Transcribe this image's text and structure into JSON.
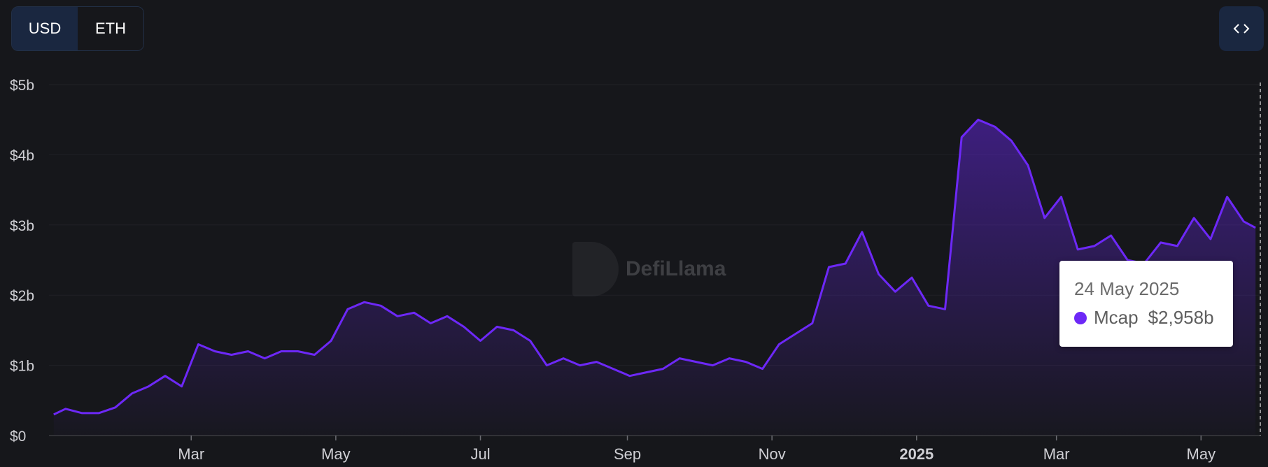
{
  "toggle": {
    "usd_label": "USD",
    "eth_label": "ETH",
    "active": "USD"
  },
  "embed_icon": "code-brackets-icon",
  "watermark": {
    "text": "DefiLlama",
    "icon": "llama-logo-icon"
  },
  "tooltip": {
    "date": "24 May 2025",
    "series": "Mcap",
    "value": "$2,958b"
  },
  "colors": {
    "background": "#16171b",
    "line": "#6d28f7",
    "accent": "#1a2740"
  },
  "chart_data": {
    "type": "area",
    "ylabel": "",
    "xlabel": "",
    "ylim": [
      0,
      5
    ],
    "yticks": [
      "$0",
      "$1b",
      "$2b",
      "$3b",
      "$4b",
      "$5b"
    ],
    "xlim": [
      "2024-01-01",
      "2025-05-26"
    ],
    "xticks": [
      {
        "date": "2024-03-01",
        "label": "Mar"
      },
      {
        "date": "2024-05-01",
        "label": "May"
      },
      {
        "date": "2024-07-01",
        "label": "Jul"
      },
      {
        "date": "2024-09-01",
        "label": "Sep"
      },
      {
        "date": "2024-11-01",
        "label": "Nov"
      },
      {
        "date": "2025-01-01",
        "label": "2025",
        "bold": true
      },
      {
        "date": "2025-03-01",
        "label": "Mar"
      },
      {
        "date": "2025-05-01",
        "label": "May"
      }
    ],
    "grid": true,
    "series": [
      {
        "name": "Mcap",
        "unit": "billion USD",
        "x": [
          "2024-01-03",
          "2024-01-08",
          "2024-01-15",
          "2024-01-22",
          "2024-01-29",
          "2024-02-05",
          "2024-02-12",
          "2024-02-19",
          "2024-02-26",
          "2024-03-04",
          "2024-03-11",
          "2024-03-18",
          "2024-03-25",
          "2024-04-01",
          "2024-04-08",
          "2024-04-15",
          "2024-04-22",
          "2024-04-29",
          "2024-05-06",
          "2024-05-13",
          "2024-05-20",
          "2024-05-27",
          "2024-06-03",
          "2024-06-10",
          "2024-06-17",
          "2024-06-24",
          "2024-07-01",
          "2024-07-08",
          "2024-07-15",
          "2024-07-22",
          "2024-07-29",
          "2024-08-05",
          "2024-08-12",
          "2024-08-19",
          "2024-08-26",
          "2024-09-02",
          "2024-09-09",
          "2024-09-16",
          "2024-09-23",
          "2024-09-30",
          "2024-10-07",
          "2024-10-14",
          "2024-10-21",
          "2024-10-28",
          "2024-11-04",
          "2024-11-11",
          "2024-11-18",
          "2024-11-25",
          "2024-12-02",
          "2024-12-09",
          "2024-12-16",
          "2024-12-23",
          "2024-12-30",
          "2025-01-06",
          "2025-01-13",
          "2025-01-20",
          "2025-01-27",
          "2025-02-03",
          "2025-02-10",
          "2025-02-17",
          "2025-02-24",
          "2025-03-03",
          "2025-03-10",
          "2025-03-17",
          "2025-03-24",
          "2025-03-31",
          "2025-04-07",
          "2025-04-14",
          "2025-04-21",
          "2025-04-28",
          "2025-05-05",
          "2025-05-12",
          "2025-05-19",
          "2025-05-24"
        ],
        "values": [
          0.3,
          0.38,
          0.32,
          0.32,
          0.4,
          0.6,
          0.7,
          0.85,
          0.7,
          1.3,
          1.2,
          1.15,
          1.2,
          1.1,
          1.2,
          1.2,
          1.15,
          1.35,
          1.8,
          1.9,
          1.85,
          1.7,
          1.75,
          1.6,
          1.7,
          1.55,
          1.35,
          1.55,
          1.5,
          1.35,
          1.0,
          1.1,
          1.0,
          1.05,
          0.95,
          0.85,
          0.9,
          0.95,
          1.1,
          1.05,
          1.0,
          1.1,
          1.05,
          0.95,
          1.3,
          1.45,
          1.6,
          2.4,
          2.45,
          2.9,
          2.3,
          2.05,
          2.25,
          1.85,
          1.8,
          4.25,
          4.5,
          4.4,
          4.2,
          3.85,
          3.1,
          3.4,
          2.65,
          2.7,
          2.85,
          2.5,
          2.45,
          2.75,
          2.7,
          3.1,
          2.8,
          3.4,
          3.05,
          2.96
        ]
      }
    ]
  }
}
